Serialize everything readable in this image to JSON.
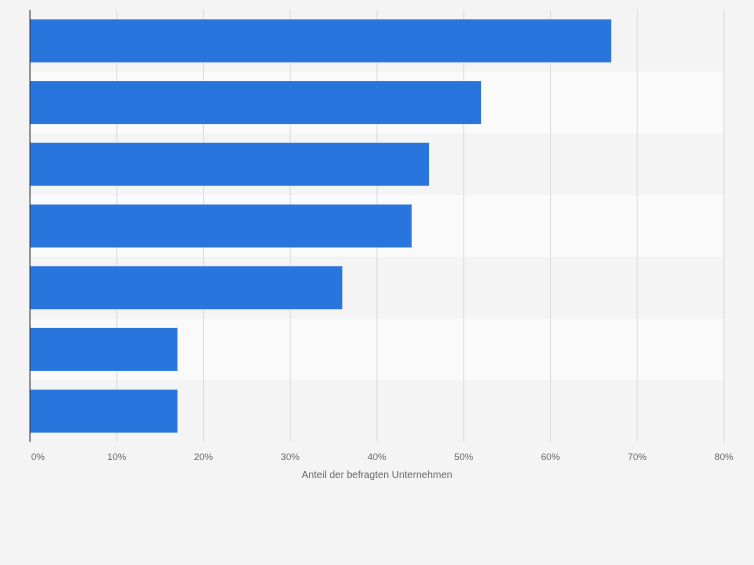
{
  "chart_data": {
    "type": "bar",
    "orientation": "horizontal",
    "categories": [
      "",
      "",
      "",
      "",
      "",
      "",
      ""
    ],
    "values": [
      67,
      52,
      46,
      44,
      36,
      17,
      17
    ],
    "xlabel": "Anteil der befragten Unternehmen",
    "ylabel": "",
    "xlim": [
      0,
      80
    ],
    "xticks": [
      0,
      10,
      20,
      30,
      40,
      50,
      60,
      70,
      80
    ],
    "tick_suffix": "%",
    "grid": true,
    "bar_color": "#2876dd",
    "band_colors": [
      "#f4f4f4",
      "#fafafa"
    ]
  }
}
